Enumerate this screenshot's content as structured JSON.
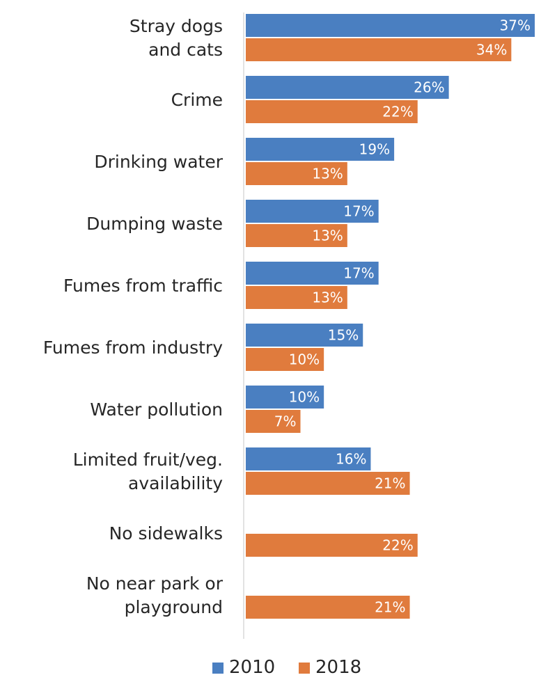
{
  "chart_data": {
    "type": "bar",
    "orientation": "horizontal",
    "categories": [
      [
        "Stray dogs",
        "and cats"
      ],
      [
        "Crime"
      ],
      [
        "Drinking water"
      ],
      [
        "Dumping waste"
      ],
      [
        "Fumes from traffic"
      ],
      [
        "Fumes from industry"
      ],
      [
        "Water pollution"
      ],
      [
        "Limited fruit/veg.",
        "availability"
      ],
      [
        "No sidewalks"
      ],
      [
        "No near park or",
        "playground"
      ]
    ],
    "series": [
      {
        "name": "2010",
        "color": "#4a7fc1",
        "values": [
          37,
          26,
          19,
          17,
          17,
          15,
          10,
          16,
          null,
          null
        ],
        "labels": [
          "37%",
          "26%",
          "19%",
          "17%",
          "17%",
          "15%",
          "10%",
          "16%",
          null,
          null
        ]
      },
      {
        "name": "2018",
        "color": "#e07b3d",
        "values": [
          34,
          22,
          13,
          13,
          13,
          10,
          7,
          21,
          22,
          21
        ],
        "labels": [
          "34%",
          "22%",
          "13%",
          "13%",
          "13%",
          "10%",
          "7%",
          "21%",
          "22%",
          "21%"
        ]
      }
    ],
    "xlim": [
      0,
      37
    ],
    "grid": false,
    "legend_position": "bottom"
  }
}
